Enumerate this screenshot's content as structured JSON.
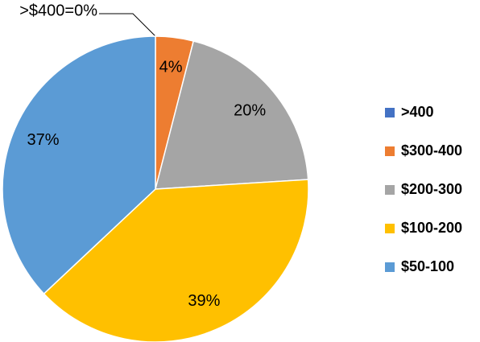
{
  "chart_data": {
    "type": "pie",
    "categories": [
      ">400",
      "$300-400",
      "$200-300",
      "$100-200",
      "$50-100"
    ],
    "values": [
      0,
      4,
      20,
      39,
      37
    ],
    "value_labels": [
      ">$400=0%",
      "4%",
      "20%",
      "39%",
      "37%"
    ],
    "colors": [
      "#4472c4",
      "#ed7d31",
      "#a5a5a5",
      "#ffc000",
      "#5b9bd5"
    ],
    "legend": "right"
  }
}
